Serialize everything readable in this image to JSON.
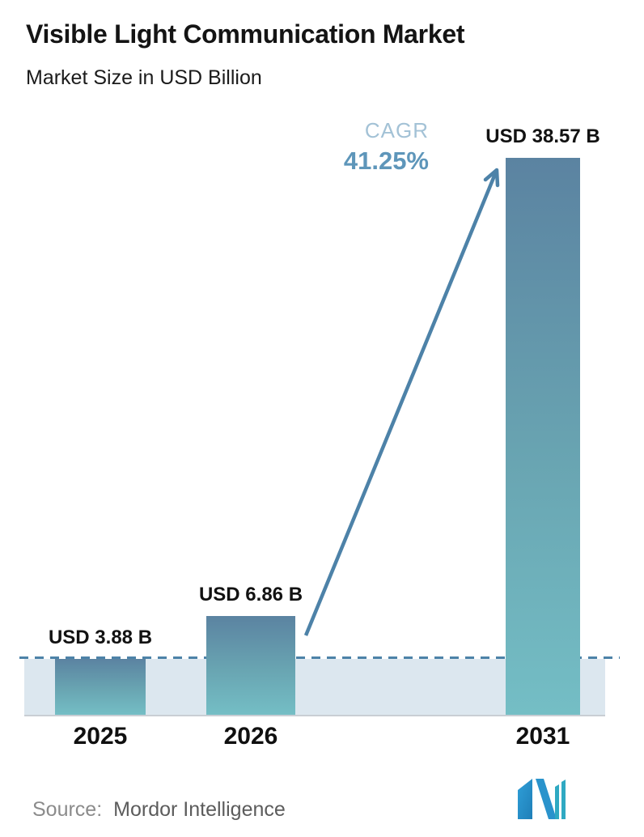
{
  "title": "Visible Light Communication Market",
  "subtitle": "Market Size in USD Billion",
  "cagr": {
    "label": "CAGR",
    "value": "41.25%"
  },
  "source": {
    "label": "Source:",
    "name": "Mordor Intelligence"
  },
  "chart_data": {
    "type": "bar",
    "title": "Visible Light Communication Market",
    "subtitle": "Market Size in USD Billion",
    "unit": "USD Billion",
    "categories": [
      "2025",
      "2026",
      "2031"
    ],
    "values": [
      3.88,
      6.86,
      38.57
    ],
    "value_labels": [
      "USD 3.88 B",
      "USD 6.86 B",
      "USD 38.57 B"
    ],
    "ylim": [
      0,
      38.57
    ],
    "grid": false,
    "legend": "none",
    "annotations": [
      {
        "type": "cagr-arrow",
        "label": "CAGR",
        "value": "41.25%",
        "from": "2026",
        "to": "2031"
      },
      {
        "type": "dashed-baseline",
        "at_value": 3.88
      }
    ],
    "colors": {
      "bar_gradient_top": "#5b83a1",
      "bar_gradient_bottom": "#74bec5",
      "baseline_band": "#dce7ef",
      "dashed_line": "#4d82a8",
      "arrow": "#4d82a8",
      "cagr_label": "#a3c2d6",
      "cagr_value": "#5e96ba",
      "axis_line": "#c9ced4"
    }
  }
}
